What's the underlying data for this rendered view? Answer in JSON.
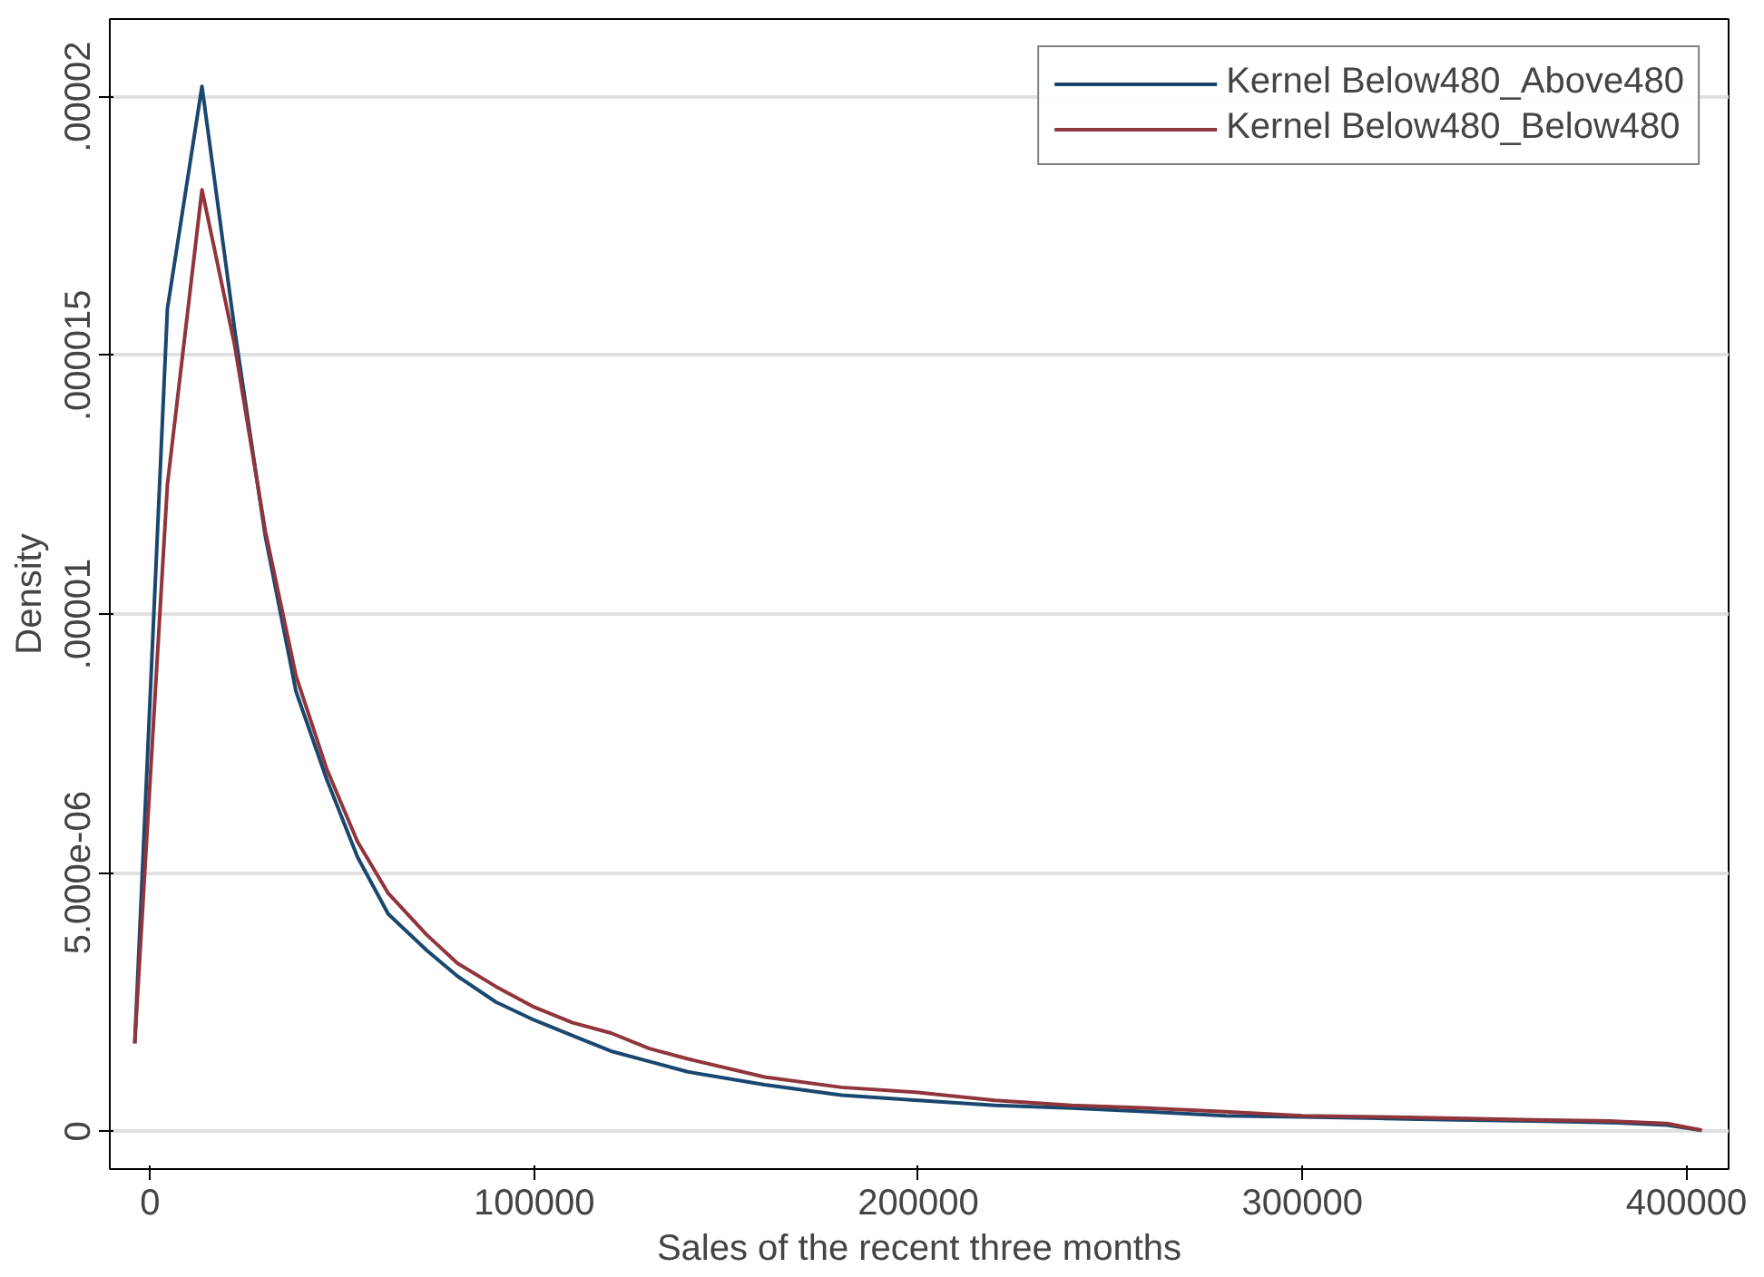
{
  "chart_data": {
    "type": "line",
    "xlabel": "Sales of the recent three months",
    "ylabel": "Density",
    "xlim": [
      -10500,
      411000
    ],
    "xticks": [
      0,
      100000,
      200000,
      300000,
      400000
    ],
    "ylim": [
      -7.3e-07,
      2.15e-05
    ],
    "yticks": [
      0,
      {
        "value": 5e-06,
        "label": "5.000e-06"
      },
      {
        "value": 1e-05,
        "label": ".00001"
      },
      {
        "value": 1.5e-05,
        "label": ".000015"
      },
      {
        "value": 2e-05,
        "label": ".00002"
      }
    ],
    "grid": "y",
    "legend": "top right",
    "marker": "none",
    "line_style": "solid",
    "x": [
      -4000,
      4500,
      13500,
      22000,
      30000,
      38000,
      46000,
      54000,
      62000,
      72000,
      80000,
      90000,
      100000,
      110000,
      120000,
      130000,
      140000,
      160000,
      180000,
      200000,
      220000,
      240000,
      260000,
      280000,
      300000,
      320000,
      340000,
      360000,
      380000,
      395000,
      404000
    ],
    "series": [
      {
        "name": "Kernel Below480_Above480",
        "color": "#1a476f",
        "values": [
          1.7e-06,
          1.59e-05,
          2.02e-05,
          1.55e-05,
          1.15e-05,
          8.5e-06,
          6.8e-06,
          5.3e-06,
          4.2e-06,
          3.5e-06,
          3e-06,
          2.5e-06,
          2.15e-06,
          1.85e-06,
          1.55e-06,
          1.35e-06,
          1.15e-06,
          9e-07,
          7e-07,
          6e-07,
          5e-07,
          4.5e-07,
          3.8e-07,
          3e-07,
          2.8e-07,
          2.5e-07,
          2.2e-07,
          2e-07,
          1.7e-07,
          1.2e-07,
          2e-08
        ]
      },
      {
        "name": "Kernel Below480_Below480",
        "color": "#90353b",
        "values": [
          1.7e-06,
          1.25e-05,
          1.82e-05,
          1.52e-05,
          1.16e-05,
          8.8e-06,
          7e-06,
          5.6e-06,
          4.6e-06,
          3.8e-06,
          3.25e-06,
          2.8e-06,
          2.4e-06,
          2.1e-06,
          1.9e-06,
          1.6e-06,
          1.4e-06,
          1.05e-06,
          8.5e-07,
          7.5e-07,
          6e-07,
          5e-07,
          4.5e-07,
          3.8e-07,
          3e-07,
          2.8e-07,
          2.5e-07,
          2.2e-07,
          2e-07,
          1.5e-07,
          2e-08
        ]
      }
    ]
  }
}
